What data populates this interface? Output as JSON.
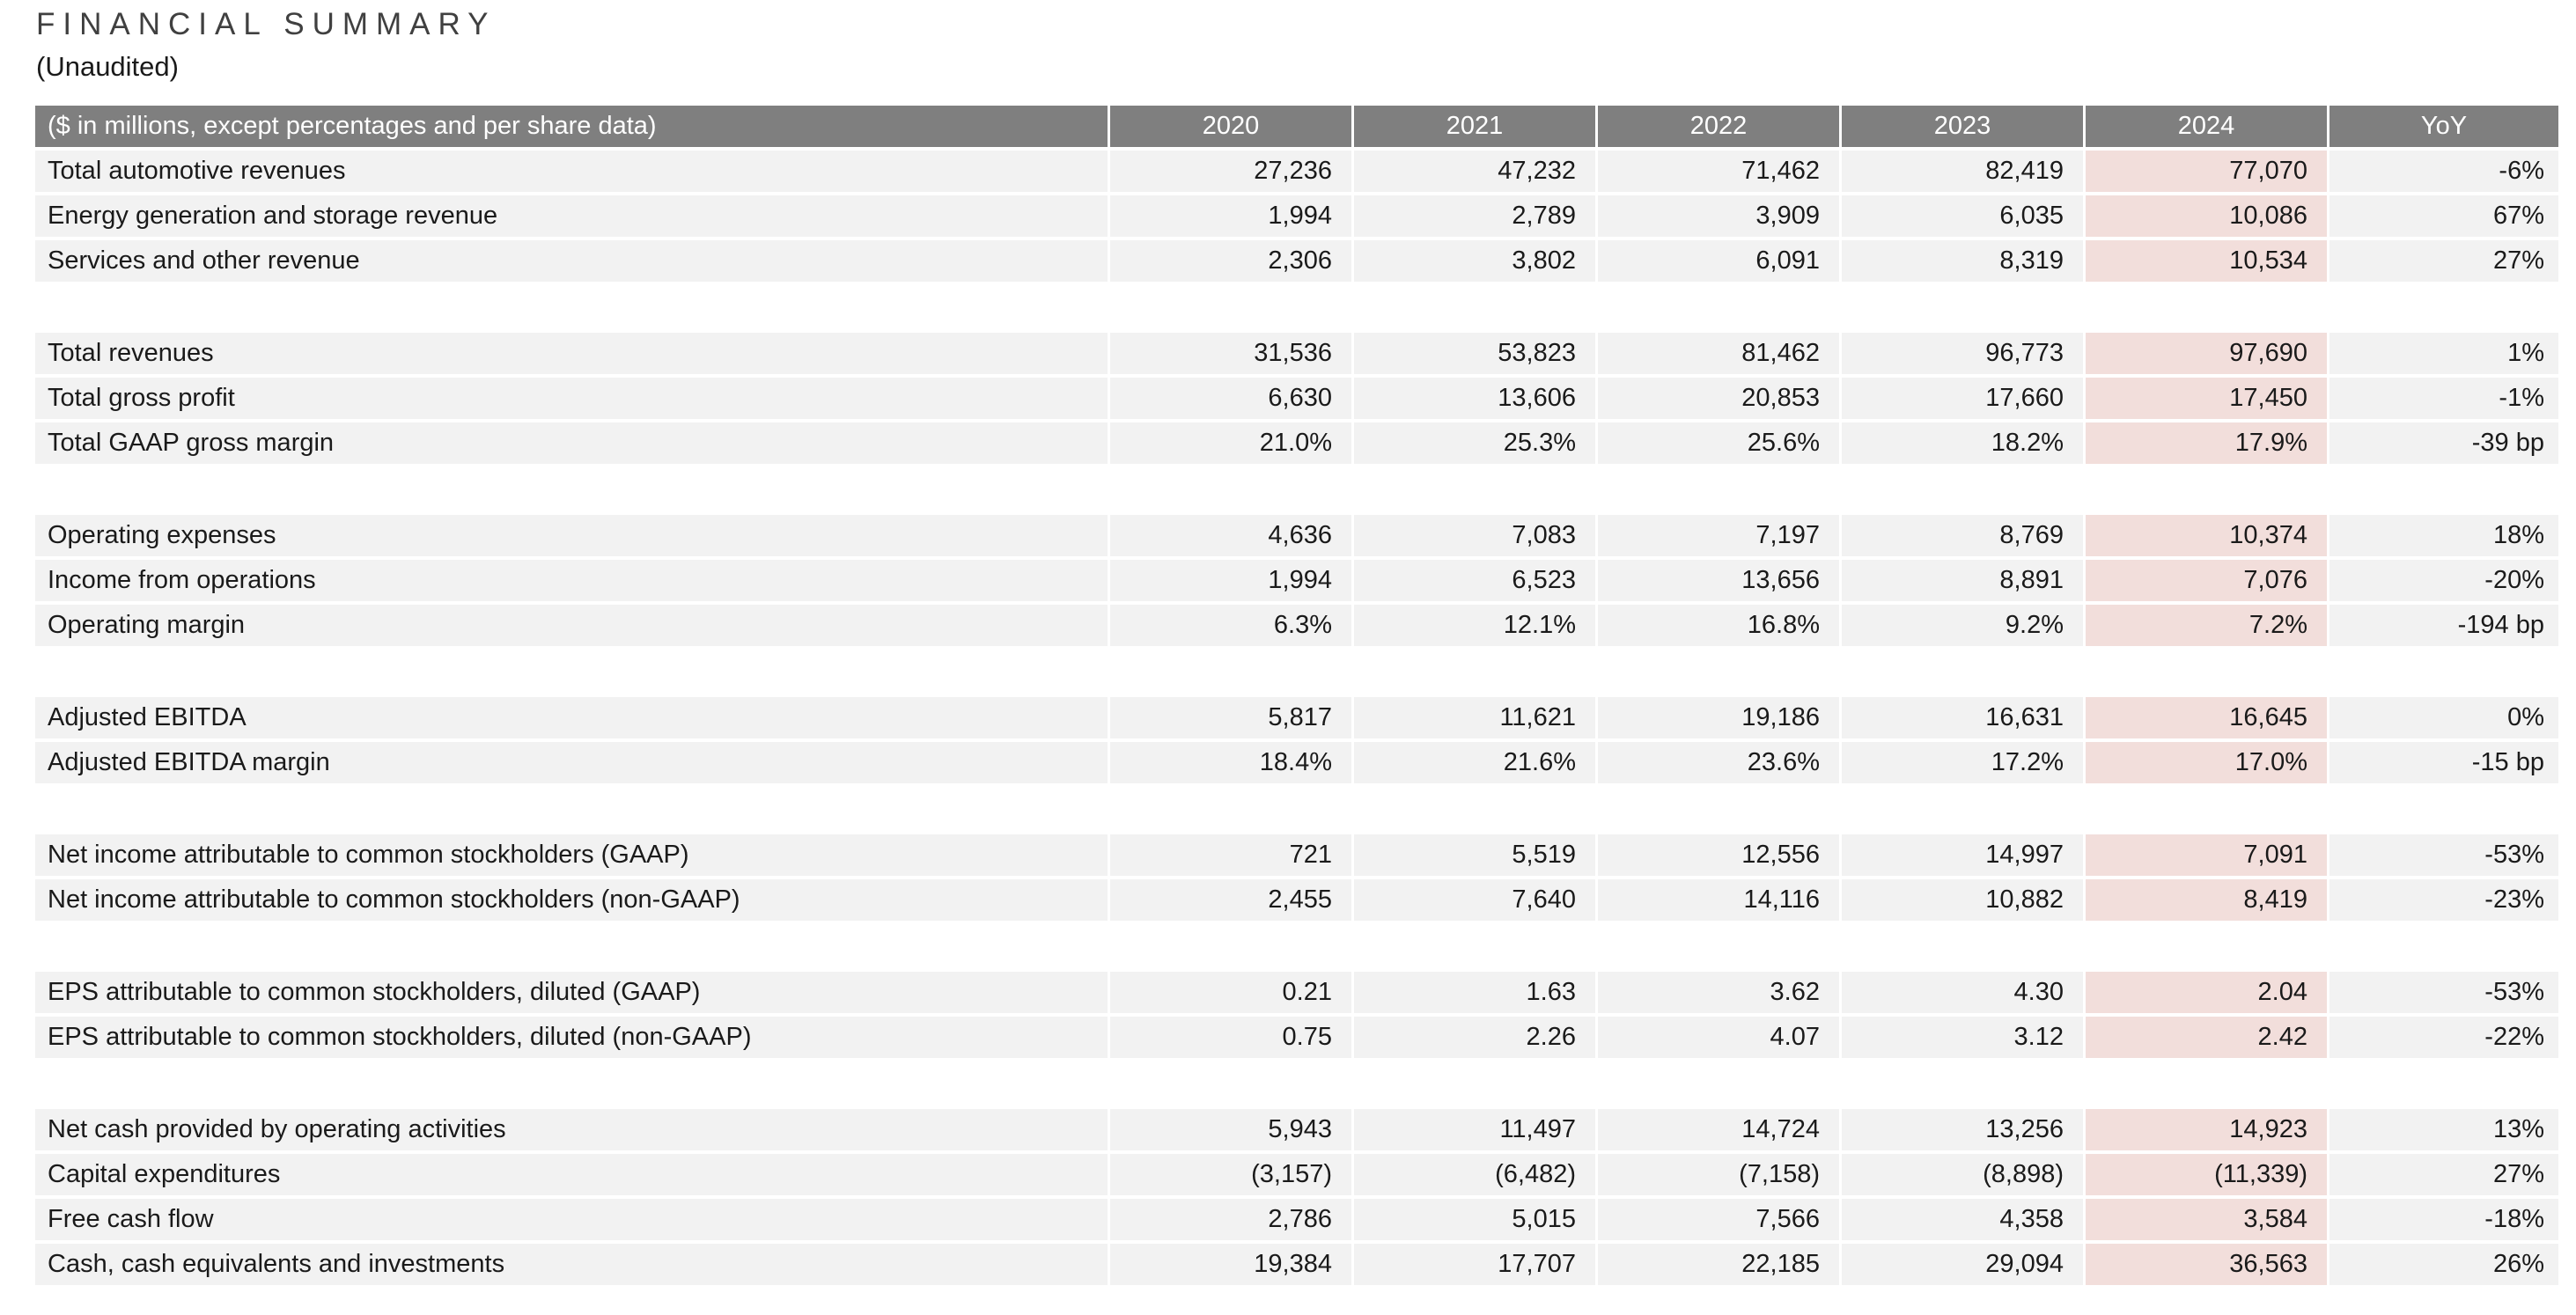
{
  "page": {
    "title": "FINANCIAL SUMMARY",
    "subtitle": "(Unaudited)"
  },
  "colors": {
    "header_bg": "#7f7f7f",
    "header_text": "#ffffff",
    "row_bg": "#f2f2f2",
    "highlight_2024_bg": "#f2dedb",
    "title_text": "#404040",
    "body_text": "#1a1a1a"
  },
  "table": {
    "header": {
      "label": "($ in millions, except percentages and per share data)",
      "columns": [
        "2020",
        "2021",
        "2022",
        "2023",
        "2024",
        "YoY"
      ]
    },
    "highlighted_column": "2024",
    "sections": [
      {
        "rows": [
          {
            "label": "Total automotive revenues",
            "values": [
              "27,236",
              "47,232",
              "71,462",
              "82,419",
              "77,070",
              "-6%"
            ]
          },
          {
            "label": "Energy generation and storage revenue",
            "values": [
              "1,994",
              "2,789",
              "3,909",
              "6,035",
              "10,086",
              "67%"
            ]
          },
          {
            "label": "Services and other revenue",
            "values": [
              "2,306",
              "3,802",
              "6,091",
              "8,319",
              "10,534",
              "27%"
            ]
          }
        ]
      },
      {
        "rows": [
          {
            "label": "Total revenues",
            "values": [
              "31,536",
              "53,823",
              "81,462",
              "96,773",
              "97,690",
              "1%"
            ]
          },
          {
            "label": "Total gross profit",
            "values": [
              "6,630",
              "13,606",
              "20,853",
              "17,660",
              "17,450",
              "-1%"
            ]
          },
          {
            "label": "Total GAAP gross margin",
            "values": [
              "21.0%",
              "25.3%",
              "25.6%",
              "18.2%",
              "17.9%",
              "-39 bp"
            ]
          }
        ]
      },
      {
        "rows": [
          {
            "label": "Operating expenses",
            "values": [
              "4,636",
              "7,083",
              "7,197",
              "8,769",
              "10,374",
              "18%"
            ]
          },
          {
            "label": "Income from operations",
            "values": [
              "1,994",
              "6,523",
              "13,656",
              "8,891",
              "7,076",
              "-20%"
            ]
          },
          {
            "label": "Operating margin",
            "values": [
              "6.3%",
              "12.1%",
              "16.8%",
              "9.2%",
              "7.2%",
              "-194 bp"
            ]
          }
        ]
      },
      {
        "rows": [
          {
            "label": "Adjusted EBITDA",
            "values": [
              "5,817",
              "11,621",
              "19,186",
              "16,631",
              "16,645",
              "0%"
            ]
          },
          {
            "label": "Adjusted EBITDA margin",
            "values": [
              "18.4%",
              "21.6%",
              "23.6%",
              "17.2%",
              "17.0%",
              "-15 bp"
            ]
          }
        ]
      },
      {
        "rows": [
          {
            "label": "Net income attributable to common stockholders (GAAP)",
            "values": [
              "721",
              "5,519",
              "12,556",
              "14,997",
              "7,091",
              "-53%"
            ]
          },
          {
            "label": "Net income attributable to common stockholders (non-GAAP)",
            "values": [
              "2,455",
              "7,640",
              "14,116",
              "10,882",
              "8,419",
              "-23%"
            ]
          }
        ]
      },
      {
        "rows": [
          {
            "label": "EPS attributable to common stockholders, diluted (GAAP)",
            "values": [
              "0.21",
              "1.63",
              "3.62",
              "4.30",
              "2.04",
              "-53%"
            ]
          },
          {
            "label": "EPS attributable to common stockholders, diluted (non-GAAP)",
            "values": [
              "0.75",
              "2.26",
              "4.07",
              "3.12",
              "2.42",
              "-22%"
            ]
          }
        ]
      },
      {
        "rows": [
          {
            "label": "Net cash provided by operating activities",
            "values": [
              "5,943",
              "11,497",
              "14,724",
              "13,256",
              "14,923",
              "13%"
            ]
          },
          {
            "label": "Capital expenditures",
            "values": [
              "(3,157)",
              "(6,482)",
              "(7,158)",
              "(8,898)",
              "(11,339)",
              "27%"
            ]
          },
          {
            "label": "Free cash flow",
            "values": [
              "2,786",
              "5,015",
              "7,566",
              "4,358",
              "3,584",
              "-18%"
            ]
          },
          {
            "label": "Cash, cash equivalents and investments",
            "values": [
              "19,384",
              "17,707",
              "22,185",
              "29,094",
              "36,563",
              "26%"
            ]
          }
        ]
      }
    ]
  }
}
